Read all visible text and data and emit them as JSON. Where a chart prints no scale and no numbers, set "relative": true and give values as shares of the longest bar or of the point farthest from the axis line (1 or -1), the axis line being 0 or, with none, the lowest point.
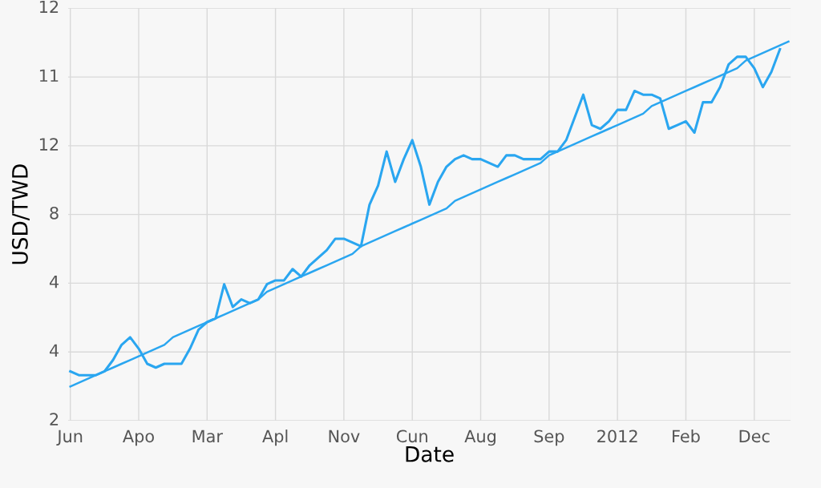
{
  "chart_data": {
    "type": "line",
    "relative": true,
    "xlabel": "Date",
    "ylabel": "USD/TWD",
    "grid": true,
    "marker": "none",
    "line_style": "solid",
    "annotations": [
      "2",
      "4",
      "4",
      "8",
      "12",
      "11",
      "12"
    ],
    "categories": [
      "Jun",
      null,
      null,
      null,
      null,
      null,
      null,
      null,
      "Apo",
      null,
      null,
      null,
      null,
      null,
      null,
      null,
      "Mar",
      null,
      null,
      null,
      null,
      null,
      null,
      null,
      "Apl",
      null,
      null,
      null,
      null,
      null,
      null,
      null,
      "Nov",
      null,
      null,
      null,
      null,
      null,
      null,
      null,
      "Cun",
      null,
      null,
      null,
      null,
      null,
      null,
      null,
      "Aug",
      null,
      null,
      null,
      null,
      null,
      null,
      null,
      "Sep",
      null,
      null,
      null,
      null,
      null,
      null,
      null,
      "2012",
      null,
      null,
      null,
      null,
      null,
      null,
      null,
      "Feb",
      null,
      null,
      null,
      null,
      null,
      null,
      null,
      "Dec",
      null,
      null,
      null,
      null
    ],
    "series": [
      {
        "color": "#2aa6f0",
        "values": [
          0.13,
          0.12,
          0.12,
          0.12,
          0.13,
          0.16,
          0.2,
          0.22,
          0.19,
          0.15,
          0.14,
          0.15,
          0.15,
          0.15,
          0.19,
          0.24,
          0.26,
          0.27,
          0.36,
          0.3,
          0.32,
          0.31,
          0.32,
          0.36,
          0.37,
          0.37,
          0.4,
          0.38,
          0.41,
          0.43,
          0.45,
          0.48,
          0.48,
          0.47,
          0.46,
          0.57,
          0.62,
          0.71,
          0.63,
          0.69,
          0.74,
          0.67,
          0.57,
          0.63,
          0.67,
          0.69,
          0.7,
          0.69,
          0.69,
          0.68,
          0.67,
          0.7,
          0.7,
          0.69,
          0.69,
          0.69,
          0.71,
          0.71,
          0.74,
          0.8,
          0.86,
          0.78,
          0.77,
          0.79,
          0.82,
          0.82,
          0.87,
          0.86,
          0.86,
          0.85,
          0.77,
          0.78,
          0.79,
          0.76,
          0.84,
          0.84,
          0.88,
          0.94,
          0.96,
          0.96,
          0.93,
          0.88,
          0.92,
          0.98,
          null
        ]
      },
      {
        "type": "line",
        "color": "#2aa6f0",
        "values": [
          0.09,
          0.1,
          0.11,
          0.12,
          0.13,
          0.14,
          0.15,
          0.16,
          0.17,
          0.18,
          0.19,
          0.2,
          0.22,
          0.23,
          0.24,
          0.25,
          0.26,
          0.27,
          0.28,
          0.29,
          0.3,
          0.31,
          0.32,
          0.34,
          0.35,
          0.36,
          0.37,
          0.38,
          0.39,
          0.4,
          0.41,
          0.42,
          0.43,
          0.44,
          0.46,
          0.47,
          0.48,
          0.49,
          0.5,
          0.51,
          0.52,
          0.53,
          0.54,
          0.55,
          0.56,
          0.58,
          0.59,
          0.6,
          0.61,
          0.62,
          0.63,
          0.64,
          0.65,
          0.66,
          0.67,
          0.68,
          0.7,
          0.71,
          0.72,
          0.73,
          0.74,
          0.75,
          0.76,
          0.77,
          0.78,
          0.79,
          0.8,
          0.81,
          0.83,
          0.84,
          0.85,
          0.86,
          0.87,
          0.88,
          0.89,
          0.9,
          0.91,
          0.92,
          0.93,
          0.95,
          0.96,
          0.97,
          0.98,
          0.99,
          1
        ]
      }
    ]
  }
}
